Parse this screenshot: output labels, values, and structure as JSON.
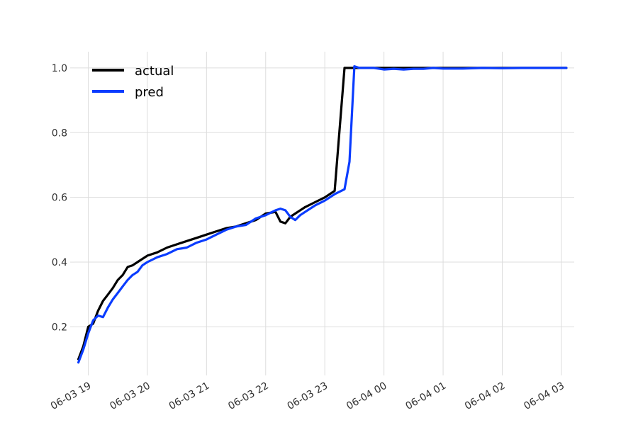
{
  "chart_data": {
    "type": "line",
    "title": "",
    "xlabel": "",
    "ylabel": "",
    "x_ticks": [
      "06-03 19",
      "06-03 20",
      "06-03 21",
      "06-03 22",
      "06-03 23",
      "06-04 00",
      "06-04 01",
      "06-04 02",
      "06-04 03"
    ],
    "y_ticks": [
      "0.2",
      "0.4",
      "0.6",
      "0.8",
      "1.0"
    ],
    "xlim": [
      "2025-06-03 18:46",
      "2025-06-04 03:13"
    ],
    "ylim": [
      0.05,
      1.05
    ],
    "grid": true,
    "legend_position": "top-left",
    "x": [
      "06-03 18:50",
      "06-03 18:55",
      "06-03 19:00",
      "06-03 19:05",
      "06-03 19:10",
      "06-03 19:15",
      "06-03 19:20",
      "06-03 19:25",
      "06-03 19:30",
      "06-03 19:35",
      "06-03 19:40",
      "06-03 19:45",
      "06-03 19:50",
      "06-03 19:55",
      "06-03 20:00",
      "06-03 20:10",
      "06-03 20:20",
      "06-03 20:30",
      "06-03 20:40",
      "06-03 20:50",
      "06-03 21:00",
      "06-03 21:10",
      "06-03 21:20",
      "06-03 21:30",
      "06-03 21:40",
      "06-03 21:50",
      "06-03 22:00",
      "06-03 22:10",
      "06-03 22:15",
      "06-03 22:20",
      "06-03 22:25",
      "06-03 22:30",
      "06-03 22:35",
      "06-03 22:40",
      "06-03 22:50",
      "06-03 23:00",
      "06-03 23:10",
      "06-03 23:20",
      "06-03 23:25",
      "06-03 23:30",
      "06-03 23:35",
      "06-03 23:40",
      "06-03 23:50",
      "06-04 00:00",
      "06-04 00:10",
      "06-04 00:20",
      "06-04 00:30",
      "06-04 00:40",
      "06-04 00:50",
      "06-04 01:00",
      "06-04 01:20",
      "06-04 01:40",
      "06-04 02:00",
      "06-04 02:20",
      "06-04 02:40",
      "06-04 03:00",
      "06-04 03:05"
    ],
    "series": [
      {
        "name": "actual",
        "color": "#000000",
        "values": [
          0.1,
          0.14,
          0.2,
          0.21,
          0.25,
          0.28,
          0.3,
          0.32,
          0.345,
          0.36,
          0.385,
          0.39,
          0.4,
          0.41,
          0.42,
          0.43,
          0.445,
          0.455,
          0.465,
          0.475,
          0.485,
          0.495,
          0.505,
          0.51,
          0.52,
          0.53,
          0.55,
          0.555,
          0.525,
          0.52,
          0.54,
          0.55,
          0.56,
          0.57,
          0.585,
          0.6,
          0.62,
          1.0,
          1.0,
          1.0,
          1.0,
          1.0,
          1.0,
          1.0,
          1.0,
          1.0,
          1.0,
          1.0,
          1.0,
          1.0,
          1.0,
          1.0,
          1.0,
          1.0,
          1.0,
          1.0,
          1.0
        ]
      },
      {
        "name": "pred",
        "color": "#0a3cff",
        "values": [
          0.09,
          0.13,
          0.18,
          0.22,
          0.235,
          0.23,
          0.26,
          0.285,
          0.305,
          0.325,
          0.345,
          0.36,
          0.37,
          0.39,
          0.4,
          0.415,
          0.425,
          0.44,
          0.445,
          0.46,
          0.47,
          0.485,
          0.5,
          0.51,
          0.515,
          0.535,
          0.545,
          0.56,
          0.565,
          0.56,
          0.54,
          0.53,
          0.545,
          0.555,
          0.575,
          0.59,
          0.61,
          0.625,
          0.71,
          1.005,
          1.0,
          1.0,
          1.0,
          0.995,
          0.997,
          0.995,
          0.997,
          0.997,
          1.0,
          0.998,
          0.998,
          1.0,
          0.999,
          1.0,
          1.0,
          1.0,
          1.0
        ]
      }
    ]
  }
}
